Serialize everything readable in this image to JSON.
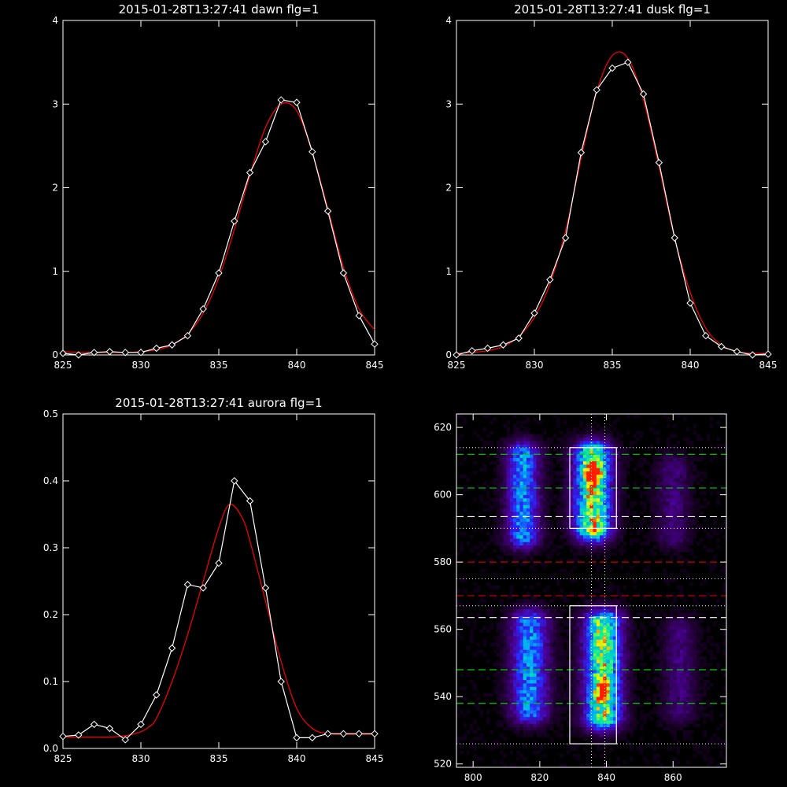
{
  "chart_data": [
    {
      "type": "line",
      "title": "2015-01-28T13:27:41 dawn flg=1",
      "xlim": [
        825,
        845
      ],
      "ylim": [
        0,
        4
      ],
      "xticks": [
        825,
        830,
        835,
        840,
        845
      ],
      "yticks": [
        0,
        1,
        2,
        3,
        4
      ],
      "series": [
        {
          "color": "#ffffff",
          "marker": "diamond",
          "x": [
            825,
            826,
            827,
            828,
            829,
            830,
            831,
            832,
            833,
            834,
            835,
            836,
            837,
            838,
            839,
            840,
            841,
            842,
            843,
            844,
            845
          ],
          "y": [
            0.02,
            0.0,
            0.03,
            0.04,
            0.03,
            0.03,
            0.08,
            0.12,
            0.23,
            0.55,
            0.98,
            1.6,
            2.18,
            2.55,
            3.05,
            3.02,
            2.43,
            1.72,
            0.98,
            0.47,
            0.13
          ]
        },
        {
          "color": "#ff0000",
          "marker": "none",
          "x": [
            825,
            826,
            827,
            828,
            829,
            830,
            831,
            832,
            833,
            834,
            835,
            836,
            837,
            838,
            839,
            840,
            841,
            842,
            843,
            844,
            845
          ],
          "y": [
            0.04,
            0.03,
            0.03,
            0.03,
            0.03,
            0.04,
            0.06,
            0.12,
            0.25,
            0.5,
            0.92,
            1.5,
            2.15,
            2.72,
            3.0,
            2.92,
            2.42,
            1.75,
            1.05,
            0.55,
            0.3
          ]
        }
      ]
    },
    {
      "type": "line",
      "title": "2015-01-28T13:27:41 dusk flg=1",
      "xlim": [
        825,
        845
      ],
      "ylim": [
        0,
        4
      ],
      "xticks": [
        825,
        830,
        835,
        840,
        845
      ],
      "yticks": [
        0,
        1,
        2,
        3,
        4
      ],
      "series": [
        {
          "color": "#ffffff",
          "marker": "diamond",
          "x": [
            825,
            826,
            827,
            828,
            829,
            830,
            831,
            832,
            833,
            834,
            835,
            836,
            837,
            838,
            839,
            840,
            841,
            842,
            843,
            844,
            845
          ],
          "y": [
            0.0,
            0.05,
            0.08,
            0.12,
            0.2,
            0.5,
            0.9,
            1.4,
            2.42,
            3.17,
            3.43,
            3.5,
            3.12,
            2.3,
            1.4,
            0.62,
            0.23,
            0.1,
            0.04,
            0.0,
            0.01
          ]
        },
        {
          "color": "#ff0000",
          "marker": "none",
          "x": [
            825,
            826,
            827,
            828,
            829,
            830,
            831,
            832,
            833,
            834,
            835,
            836,
            837,
            838,
            839,
            840,
            841,
            842,
            843,
            844,
            845
          ],
          "y": [
            0.02,
            0.03,
            0.05,
            0.1,
            0.22,
            0.45,
            0.85,
            1.48,
            2.35,
            3.15,
            3.58,
            3.55,
            3.05,
            2.25,
            1.4,
            0.75,
            0.32,
            0.12,
            0.04,
            0.02,
            0.02
          ]
        }
      ]
    },
    {
      "type": "line",
      "title": "2015-01-28T13:27:41 aurora flg=1",
      "xlim": [
        825,
        845
      ],
      "ylim": [
        0,
        0.5
      ],
      "xticks": [
        825,
        830,
        835,
        840,
        845
      ],
      "yticks": [
        0.0,
        0.1,
        0.2,
        0.3,
        0.4,
        0.5
      ],
      "xtick_labels": [
        "825",
        "830",
        "835",
        "840",
        "845"
      ],
      "ytick_labels": [
        "0.0",
        "0.1",
        "0.2",
        "0.3",
        "0.4",
        "0.5"
      ],
      "series": [
        {
          "color": "#ffffff",
          "marker": "diamond",
          "x": [
            825,
            826,
            827,
            828,
            829,
            830,
            831,
            832,
            833,
            834,
            835,
            836,
            837,
            838,
            839,
            840,
            841,
            842,
            843,
            844,
            845
          ],
          "y": [
            0.018,
            0.02,
            0.036,
            0.03,
            0.013,
            0.036,
            0.08,
            0.15,
            0.245,
            0.24,
            0.277,
            0.4,
            0.37,
            0.24,
            0.1,
            0.016,
            0.016,
            0.022,
            0.022,
            0.022,
            0.022
          ]
        },
        {
          "color": "#ff0000",
          "marker": "none",
          "x": [
            825,
            826,
            827,
            828,
            829,
            830,
            830.5,
            831,
            832,
            833,
            834,
            835,
            835.7,
            836.5,
            837,
            838,
            839,
            840,
            841,
            842,
            843,
            844,
            845
          ],
          "y": [
            0.017,
            0.017,
            0.017,
            0.017,
            0.019,
            0.025,
            0.032,
            0.045,
            0.1,
            0.17,
            0.25,
            0.33,
            0.365,
            0.345,
            0.31,
            0.22,
            0.13,
            0.06,
            0.03,
            0.022,
            0.021,
            0.021,
            0.021
          ]
        }
      ]
    },
    {
      "type": "heatmap",
      "title": "",
      "xlim": [
        795,
        876
      ],
      "ylim": [
        519,
        624
      ],
      "xticks": [
        800,
        820,
        840,
        860
      ],
      "yticks": [
        520,
        540,
        560,
        580,
        600,
        620
      ],
      "blobs": [
        {
          "x": 815,
          "ylo": 588,
          "yhi": 612,
          "w": 3.5,
          "level": 0.55
        },
        {
          "x": 836,
          "ylo": 590,
          "yhi": 612,
          "w": 4.0,
          "level": 0.85
        },
        {
          "x": 836,
          "y": 606,
          "peak": true
        },
        {
          "x": 860,
          "ylo": 588,
          "yhi": 608,
          "w": 3.5,
          "level": 0.2
        },
        {
          "x": 817,
          "ylo": 536,
          "yhi": 562,
          "w": 4.0,
          "level": 0.55
        },
        {
          "x": 839,
          "ylo": 534,
          "yhi": 562,
          "w": 4.0,
          "level": 0.8
        },
        {
          "x": 839,
          "y": 542,
          "peak": true
        },
        {
          "x": 862,
          "ylo": 536,
          "yhi": 560,
          "w": 3.5,
          "level": 0.2
        }
      ],
      "hlines": [
        {
          "y": 612,
          "color": "#00cc00",
          "style": "dashed"
        },
        {
          "y": 602,
          "color": "#00cc00",
          "style": "dashed"
        },
        {
          "y": 593.5,
          "color": "#ffffff",
          "style": "dashed"
        },
        {
          "y": 580,
          "color": "#cc0000",
          "style": "dashed"
        },
        {
          "y": 570,
          "color": "#cc0000",
          "style": "dashed"
        },
        {
          "y": 563.5,
          "color": "#ffffff",
          "style": "dashed"
        },
        {
          "y": 548,
          "color": "#00cc00",
          "style": "dashed"
        },
        {
          "y": 538,
          "color": "#00cc00",
          "style": "dashed"
        },
        {
          "y": 614,
          "color": "#ffffff",
          "style": "dotted"
        },
        {
          "y": 590,
          "color": "#ffffff",
          "style": "dotted"
        },
        {
          "y": 575,
          "color": "#ffffff",
          "style": "dotted"
        },
        {
          "y": 567,
          "color": "#ffffff",
          "style": "dotted"
        },
        {
          "y": 526,
          "color": "#ffffff",
          "style": "dotted"
        }
      ],
      "vlines": [
        {
          "x": 835.5,
          "color": "#ffffff",
          "style": "dotted"
        },
        {
          "x": 839.5,
          "color": "#ffffff",
          "style": "dotted"
        }
      ],
      "rects": [
        {
          "x0": 829,
          "x1": 843,
          "y0": 590,
          "y1": 614
        },
        {
          "x0": 829,
          "x1": 843,
          "y0": 526,
          "y1": 567
        }
      ]
    }
  ]
}
